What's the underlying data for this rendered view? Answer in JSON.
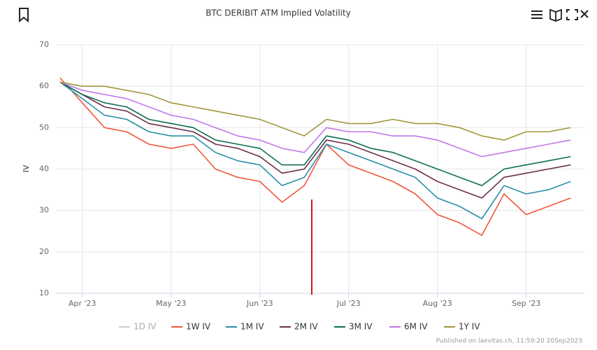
{
  "chart_data": {
    "type": "line",
    "title": "BTC DERIBIT ATM Implied Volatility",
    "y_label": "IV",
    "credit": "Published on laevitas.ch, 11:59:20 20Sep2023",
    "categories": [
      null,
      "Apr '23",
      null,
      null,
      null,
      "May '23",
      null,
      null,
      null,
      "Jun '23",
      null,
      null,
      null,
      "Jul '23",
      null,
      null,
      null,
      "Aug '23",
      null,
      null,
      null,
      "Sep '23",
      null,
      null
    ],
    "ylim": [
      10,
      70
    ],
    "yticks": [
      10,
      20,
      30,
      40,
      50,
      60,
      70
    ],
    "grid": true,
    "series": [
      {
        "name": "1D IV",
        "color": "#cccccc",
        "visible": false
      },
      {
        "name": "1W IV",
        "color": "#f0583a",
        "values": [
          62,
          56,
          50,
          49,
          46,
          45,
          46,
          40,
          38,
          37,
          32,
          36,
          46,
          41,
          39,
          37,
          34,
          29,
          27,
          24,
          34,
          29,
          31,
          33
        ]
      },
      {
        "name": "1M IV",
        "color": "#2b8fa6",
        "values": [
          61,
          57,
          53,
          52,
          49,
          48,
          48,
          44,
          42,
          41,
          36,
          38,
          46,
          44,
          42,
          40,
          38,
          33,
          31,
          28,
          36,
          34,
          35,
          37
        ]
      },
      {
        "name": "2M IV",
        "color": "#6b2f4d",
        "values": [
          61,
          58,
          55,
          54,
          51,
          50,
          49,
          46,
          45,
          43,
          39,
          40,
          47,
          46,
          44,
          42,
          40,
          37,
          35,
          33,
          38,
          39,
          40,
          41
        ]
      },
      {
        "name": "3M IV",
        "color": "#0e6e52",
        "values": [
          61,
          58,
          56,
          55,
          52,
          51,
          50,
          47,
          46,
          45,
          41,
          41,
          48,
          47,
          45,
          44,
          42,
          40,
          38,
          36,
          40,
          41,
          42,
          43
        ]
      },
      {
        "name": "6M IV",
        "color": "#c17ae8",
        "values": [
          61,
          59,
          58,
          57,
          55,
          53,
          52,
          50,
          48,
          47,
          45,
          44,
          50,
          49,
          49,
          48,
          48,
          47,
          45,
          43,
          44,
          45,
          46,
          47
        ]
      },
      {
        "name": "1Y IV",
        "color": "#a1983a",
        "values": [
          61,
          60,
          60,
          59,
          58,
          56,
          55,
          54,
          53,
          52,
          50,
          48,
          52,
          51,
          51,
          52,
          51,
          51,
          50,
          48,
          47,
          49,
          49,
          50
        ]
      }
    ]
  }
}
